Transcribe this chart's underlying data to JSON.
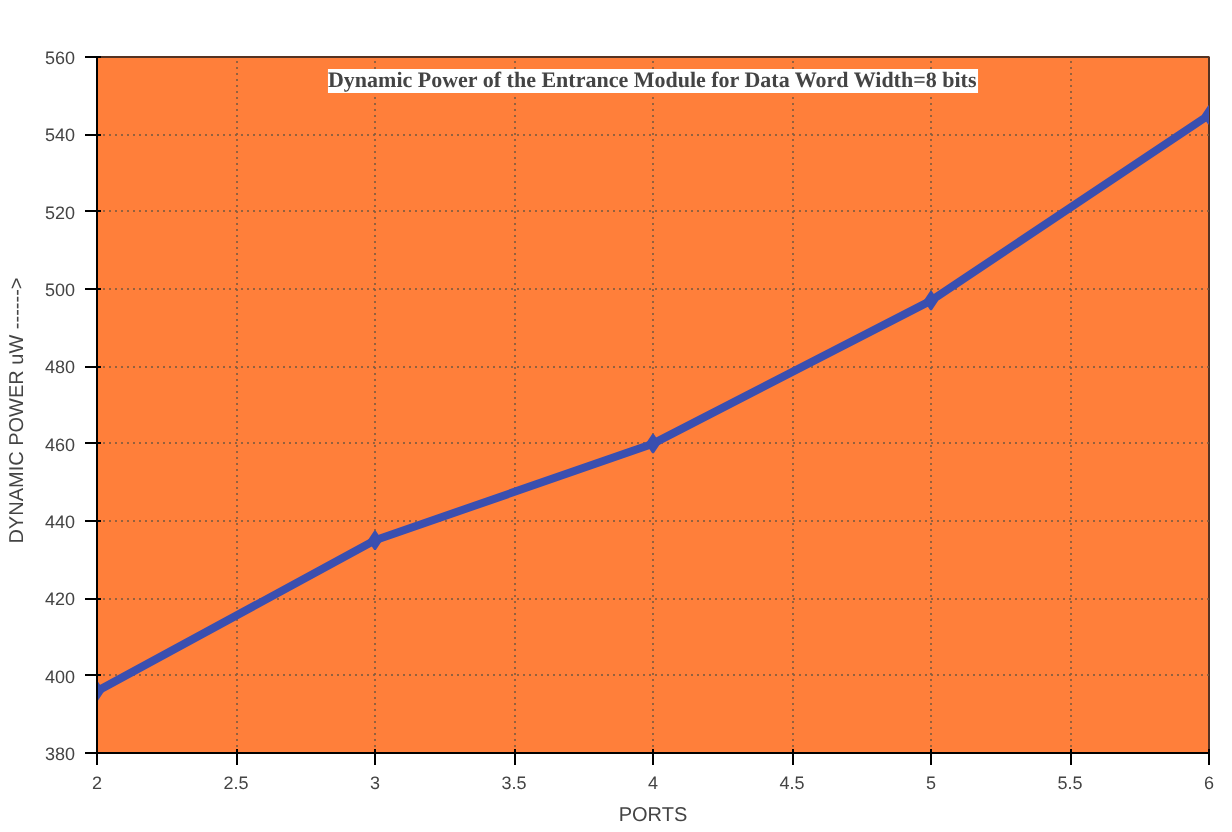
{
  "chart_data": {
    "type": "line",
    "title": "Dynamic Power of the Entrance Module for Data Word Width=8 bits",
    "xlabel": "PORTS",
    "ylabel": "DYNAMIC POWER  uW  ------>",
    "x": [
      2,
      3,
      4,
      5,
      6
    ],
    "series": [
      {
        "color": "#3a4fb0",
        "values": [
          396,
          435,
          460,
          497,
          545
        ]
      }
    ],
    "xlim": [
      2,
      6
    ],
    "xticks": [
      2,
      2.5,
      3,
      3.5,
      4,
      4.5,
      5,
      5.5,
      6
    ],
    "ylim": [
      380,
      560
    ],
    "yticks": [
      380,
      400,
      420,
      440,
      460,
      480,
      500,
      520,
      540,
      560
    ],
    "grid": true,
    "marker": "diamond",
    "line_style": "solid"
  }
}
